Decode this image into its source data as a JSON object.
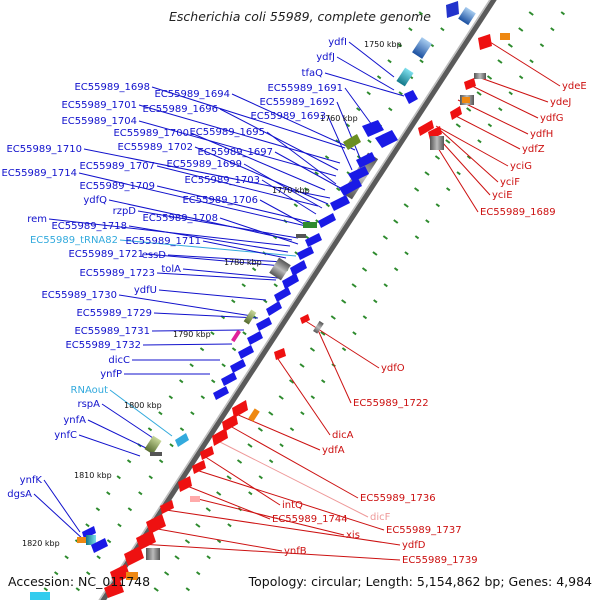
{
  "title": "Escherichia coli 55989, complete genome",
  "footer": {
    "accession": "Accession: NC_011748",
    "summary": "Topology: circular; Length: 5,154,862 bp; Genes: 4,984"
  },
  "colors": {
    "plus_label": "#1111cc",
    "minus_label": "#cc1111",
    "rna_label": "#33aadd",
    "plus_feature": "#1a1ae6",
    "minus_feature": "#ee1111",
    "backbone": "#888888",
    "tick": "#2e8b2e"
  },
  "kbp_ticks": [
    "1750 kbp",
    "1760 kbp",
    "1770 kbp",
    "1780 kbp",
    "1790 kbp",
    "1800 kbp",
    "1810 kbp",
    "1820 kbp"
  ],
  "left_labels": [
    {
      "text": "ydfI",
      "type": "plus"
    },
    {
      "text": "ydfJ",
      "type": "plus"
    },
    {
      "text": "tfaQ",
      "type": "plus"
    },
    {
      "text": "EC55989_1691",
      "type": "plus"
    },
    {
      "text": "EC55989_1698",
      "type": "plus"
    },
    {
      "text": "EC55989_1694",
      "type": "plus"
    },
    {
      "text": "EC55989_1692",
      "type": "plus"
    },
    {
      "text": "EC55989_1701",
      "type": "plus"
    },
    {
      "text": "EC55989_1696",
      "type": "plus"
    },
    {
      "text": "EC55989_1693",
      "type": "plus"
    },
    {
      "text": "EC55989_1704",
      "type": "plus"
    },
    {
      "text": "EC55989_1700",
      "type": "plus"
    },
    {
      "text": "EC55989_1695",
      "type": "plus"
    },
    {
      "text": "EC55989_1710",
      "type": "plus"
    },
    {
      "text": "EC55989_1702",
      "type": "plus"
    },
    {
      "text": "EC55989_1697",
      "type": "plus"
    },
    {
      "text": "EC55989_1707",
      "type": "plus"
    },
    {
      "text": "EC55989_1699",
      "type": "plus"
    },
    {
      "text": "EC55989_1714",
      "type": "plus"
    },
    {
      "text": "EC55989_1703",
      "type": "plus"
    },
    {
      "text": "EC55989_1709",
      "type": "plus"
    },
    {
      "text": "EC55989_1706",
      "type": "plus"
    },
    {
      "text": "ydfQ",
      "type": "plus"
    },
    {
      "text": "rzpD",
      "type": "plus"
    },
    {
      "text": "EC55989_1708",
      "type": "plus"
    },
    {
      "text": "rem",
      "type": "plus"
    },
    {
      "text": "EC55989_1718",
      "type": "plus"
    },
    {
      "text": "EC55989_tRNA82",
      "type": "rna"
    },
    {
      "text": "EC55989_1711",
      "type": "plus"
    },
    {
      "text": "essD",
      "type": "plus"
    },
    {
      "text": "EC55989_1721",
      "type": "plus"
    },
    {
      "text": "tolA",
      "type": "plus"
    },
    {
      "text": "EC55989_1723",
      "type": "plus"
    },
    {
      "text": "ydfU",
      "type": "plus"
    },
    {
      "text": "EC55989_1730",
      "type": "plus"
    },
    {
      "text": "EC55989_1729",
      "type": "plus"
    },
    {
      "text": "EC55989_1731",
      "type": "plus"
    },
    {
      "text": "EC55989_1732",
      "type": "plus"
    },
    {
      "text": "dicC",
      "type": "plus"
    },
    {
      "text": "ynfP",
      "type": "plus"
    },
    {
      "text": "RNAout",
      "type": "rna"
    },
    {
      "text": "rspA",
      "type": "plus"
    },
    {
      "text": "ynfA",
      "type": "plus"
    },
    {
      "text": "ynfC",
      "type": "plus"
    },
    {
      "text": "ynfK",
      "type": "plus"
    },
    {
      "text": "dgsA",
      "type": "plus"
    }
  ],
  "right_labels": [
    {
      "text": "ydeE",
      "type": "minus"
    },
    {
      "text": "ydeJ",
      "type": "minus"
    },
    {
      "text": "ydfG",
      "type": "minus"
    },
    {
      "text": "ydfH",
      "type": "minus"
    },
    {
      "text": "ydfZ",
      "type": "minus"
    },
    {
      "text": "yciG",
      "type": "minus"
    },
    {
      "text": "yciF",
      "type": "minus"
    },
    {
      "text": "yciE",
      "type": "minus"
    },
    {
      "text": "EC55989_1689",
      "type": "minus"
    },
    {
      "text": "ydfO",
      "type": "minus"
    },
    {
      "text": "EC55989_1722",
      "type": "minus"
    },
    {
      "text": "dicA",
      "type": "minus"
    },
    {
      "text": "ydfA",
      "type": "minus"
    },
    {
      "text": "EC55989_1736",
      "type": "minus"
    },
    {
      "text": "dicF",
      "type": "minus_rna"
    },
    {
      "text": "intQ",
      "type": "minus"
    },
    {
      "text": "EC55989_1737",
      "type": "minus"
    },
    {
      "text": "EC55989_1744",
      "type": "minus"
    },
    {
      "text": "xis",
      "type": "minus"
    },
    {
      "text": "ydfD",
      "type": "minus"
    },
    {
      "text": "ynfB",
      "type": "minus"
    },
    {
      "text": "EC55989_1739",
      "type": "minus"
    }
  ]
}
